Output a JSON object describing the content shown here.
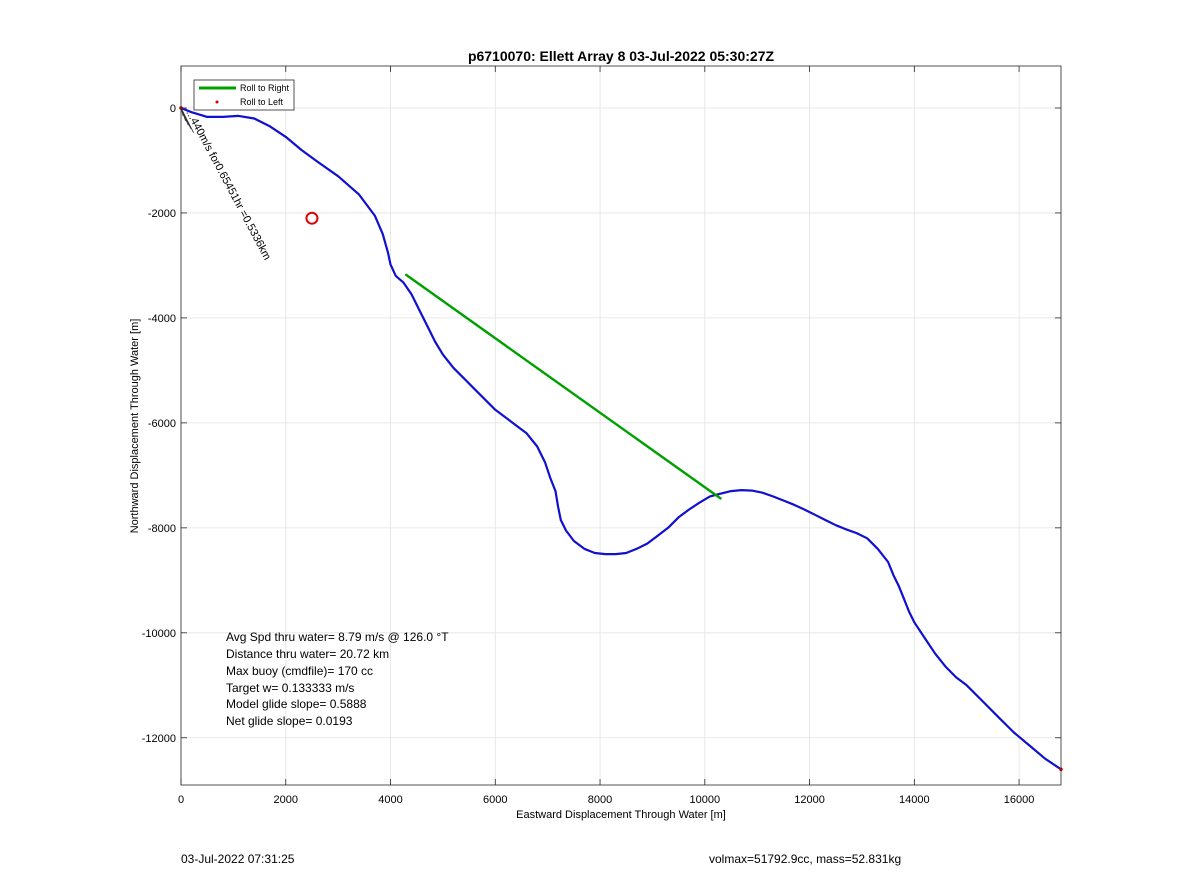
{
  "chart_data": {
    "type": "line",
    "title": "p6710070: Ellett Array 8 03-Jul-2022 05:30:27Z",
    "xlabel": "Eastward Displacement Through Water [m]",
    "ylabel": "Northward Displacement Through Water [m]",
    "xlim": [
      0,
      16800
    ],
    "ylim": [
      -12900,
      800
    ],
    "xticks": [
      0,
      2000,
      4000,
      6000,
      8000,
      10000,
      12000,
      14000,
      16000
    ],
    "yticks": [
      0,
      -2000,
      -4000,
      -6000,
      -8000,
      -10000,
      -12000
    ],
    "grid": true,
    "legend_position": "top-left",
    "legend": [
      {
        "label": "Roll to Right",
        "color": "#00a000",
        "style": "line"
      },
      {
        "label": "Roll to Left",
        "color": "#e00000",
        "style": "dot"
      }
    ],
    "series": [
      {
        "name": "",
        "color": "#1010d0",
        "x": [
          0,
          200,
          500,
          800,
          1100,
          1400,
          1700,
          2000,
          2300,
          2600,
          3000,
          3400,
          3700,
          3850,
          3950,
          4000,
          4100,
          4250,
          4400,
          4550,
          4700,
          4850,
          5000,
          5200,
          5400,
          5600,
          5800,
          6000,
          6200,
          6400,
          6600,
          6800,
          6950,
          7050,
          7150,
          7200,
          7250,
          7350,
          7500,
          7700,
          7900,
          8100,
          8300,
          8500,
          8700,
          8900,
          9100,
          9300,
          9500,
          9700,
          9900,
          10100,
          10300,
          10500,
          10700,
          10900,
          11100,
          11300,
          11500,
          11700,
          11900,
          12100,
          12300,
          12500,
          12700,
          12900,
          13100,
          13300,
          13500,
          13600,
          13700,
          13800,
          13900,
          14000,
          14200,
          14400,
          14600,
          14800,
          15000,
          15300,
          15600,
          15900,
          16200,
          16500,
          16800
        ],
        "y": [
          0,
          -80,
          -170,
          -170,
          -150,
          -200,
          -350,
          -550,
          -800,
          -1020,
          -1300,
          -1650,
          -2050,
          -2400,
          -2750,
          -2980,
          -3200,
          -3330,
          -3550,
          -3850,
          -4150,
          -4450,
          -4700,
          -4950,
          -5150,
          -5350,
          -5550,
          -5750,
          -5900,
          -6050,
          -6200,
          -6450,
          -6750,
          -7050,
          -7300,
          -7600,
          -7850,
          -8050,
          -8250,
          -8400,
          -8480,
          -8500,
          -8500,
          -8480,
          -8400,
          -8300,
          -8150,
          -8000,
          -7800,
          -7650,
          -7520,
          -7400,
          -7350,
          -7300,
          -7280,
          -7290,
          -7330,
          -7400,
          -7480,
          -7560,
          -7650,
          -7750,
          -7850,
          -7950,
          -8030,
          -8100,
          -8200,
          -8400,
          -8650,
          -8900,
          -9100,
          -9350,
          -9600,
          -9800,
          -10100,
          -10400,
          -10650,
          -10850,
          -11000,
          -11300,
          -11600,
          -11900,
          -12150,
          -12400,
          -12600
        ]
      },
      {
        "name": "Roll to Right",
        "color": "#00a000",
        "x": [
          4300,
          10300
        ],
        "y": [
          -3180,
          -7440
        ]
      }
    ],
    "markers": [
      {
        "shape": "circle",
        "color": "#e00000",
        "x": 2500,
        "y": -2100
      }
    ],
    "annotations": {
      "rotated_text": "...440m/s for0.65451hr =0.5336km",
      "stats": [
        "Avg Spd thru water=  8.79 m/s @ 126.0 °T",
        "Distance thru water= 20.72 km",
        "Max buoy (cmdfile)= 170 cc",
        "Target w= 0.133333 m/s",
        "Model glide slope= 0.5888",
        "Net glide slope= 0.0193"
      ]
    }
  },
  "footer": {
    "left": "03-Jul-2022 07:31:25",
    "right": "volmax=51792.9cc, mass=52.831kg"
  }
}
